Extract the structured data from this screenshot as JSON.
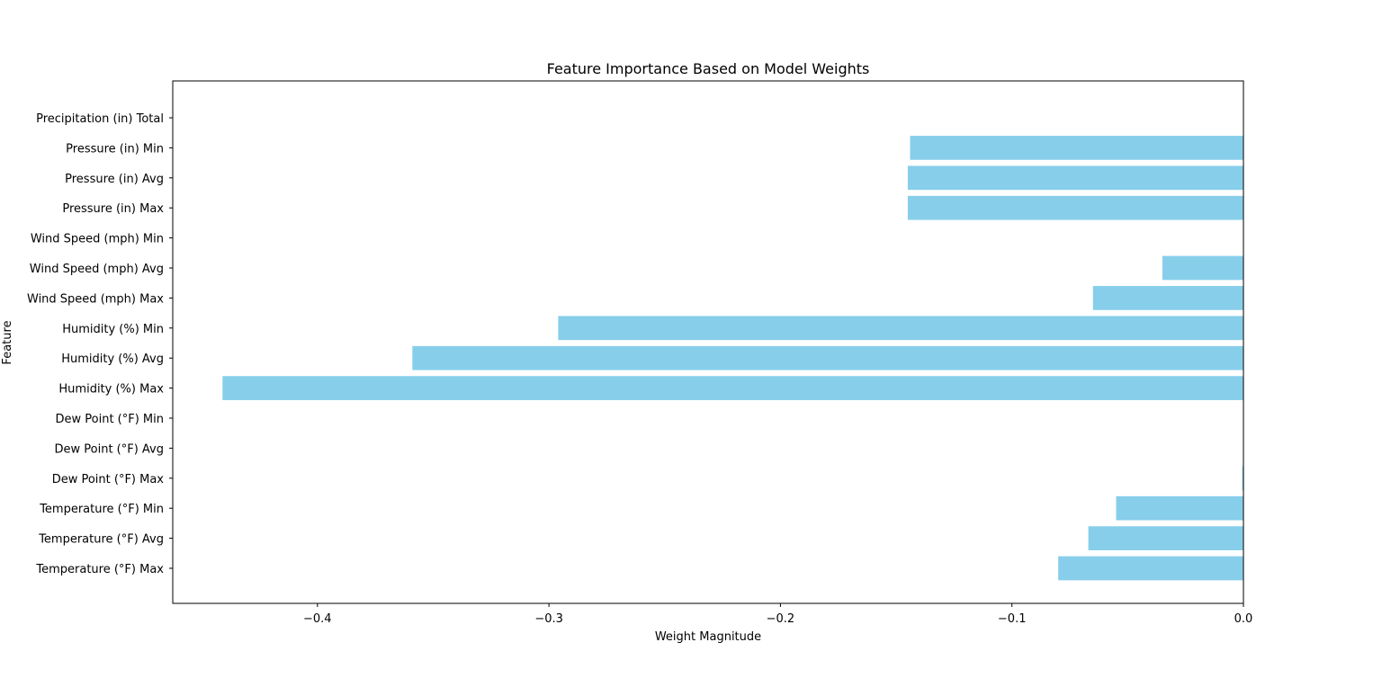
{
  "chart_data": {
    "type": "bar",
    "orientation": "horizontal",
    "title": "Feature Importance Based on Model Weights",
    "xlabel": "Weight Magnitude",
    "ylabel": "Feature",
    "xlim": [
      -0.4625,
      0.0
    ],
    "xticks": [
      -0.4,
      -0.3,
      -0.2,
      -0.1,
      0.0
    ],
    "xtick_labels": [
      "−0.4",
      "−0.3",
      "−0.2",
      "−0.1",
      "0.0"
    ],
    "grid": false,
    "bar_color": "#87CEEB",
    "categories": [
      "Temperature (°F) Max",
      "Temperature (°F) Avg",
      "Temperature (°F) Min",
      "Dew Point (°F) Max",
      "Dew Point (°F) Avg",
      "Dew Point (°F) Min",
      "Humidity (%) Max",
      "Humidity (%) Avg",
      "Humidity (%) Min",
      "Wind Speed (mph) Max",
      "Wind Speed (mph) Avg",
      "Wind Speed (mph) Min",
      "Pressure (in) Max",
      "Pressure (in) Avg",
      "Pressure (in) Min",
      "Precipitation (in) Total"
    ],
    "values": [
      -0.08,
      -0.067,
      -0.055,
      -0.0005,
      0.0,
      0.0,
      -0.441,
      -0.359,
      -0.296,
      -0.065,
      -0.035,
      0.0,
      -0.145,
      -0.145,
      -0.144,
      0.0
    ]
  }
}
